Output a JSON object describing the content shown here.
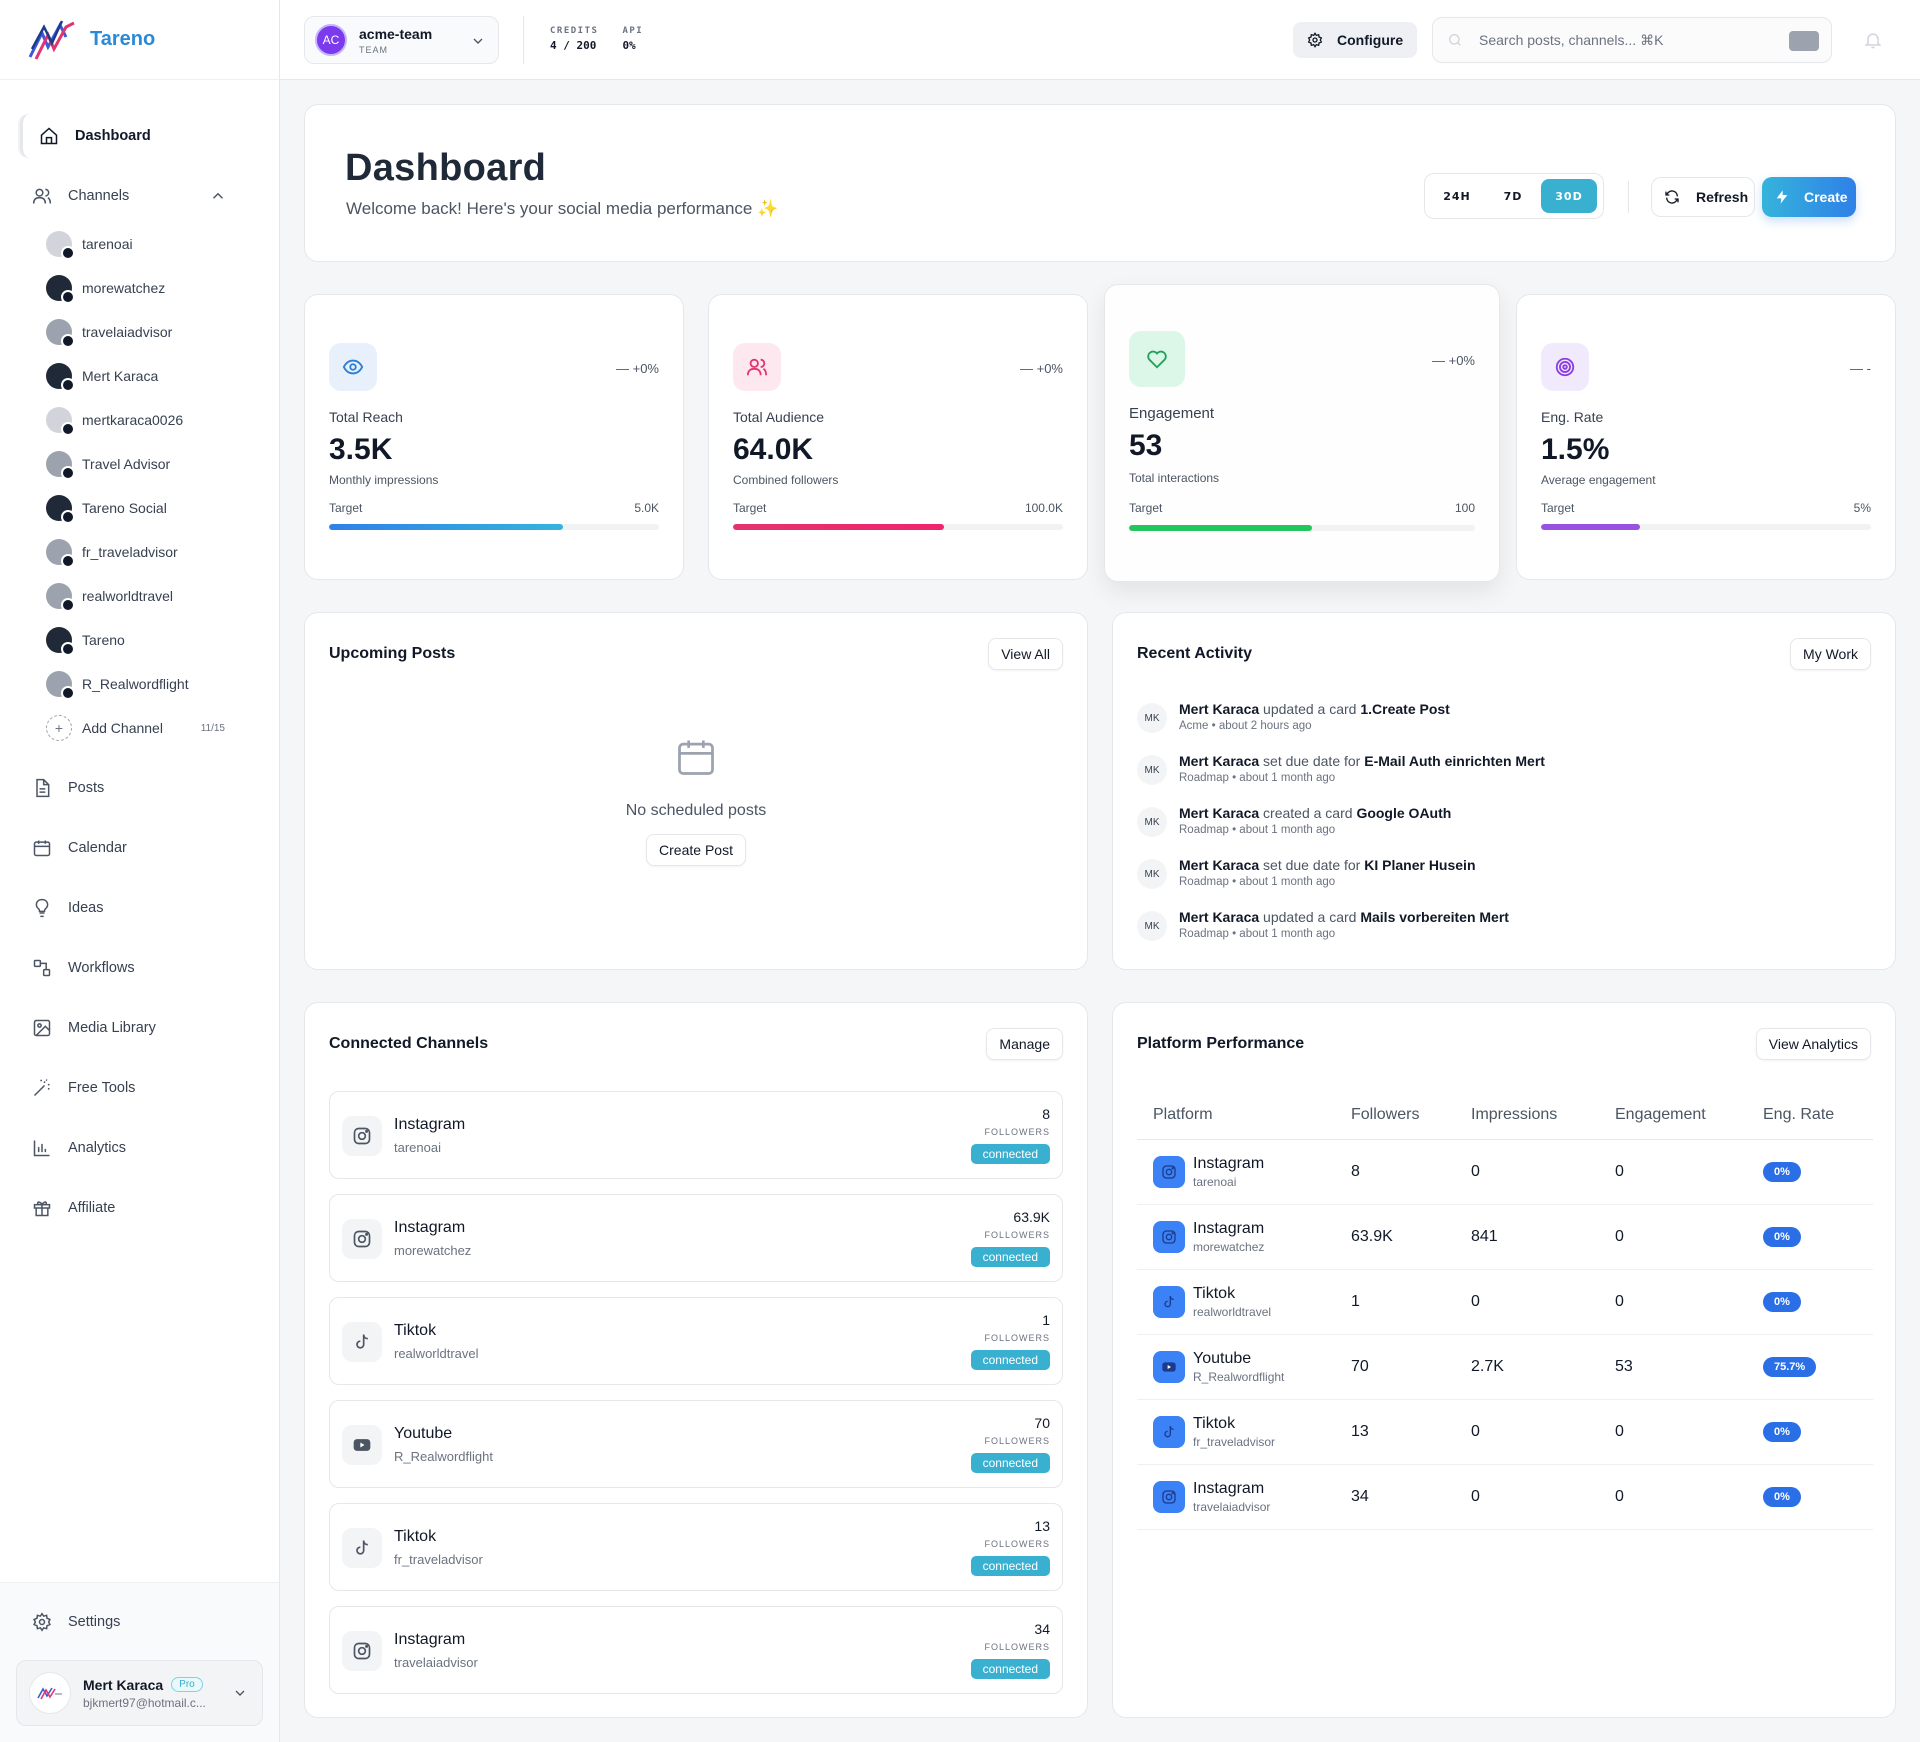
{
  "app": {
    "name": "Tareno"
  },
  "sidebar": {
    "dashboard": "Dashboard",
    "channels": "Channels",
    "channel_list": [
      {
        "name": "tarenoai",
        "avatar": "light",
        "network": "instagram"
      },
      {
        "name": "morewatchez",
        "avatar": "dark",
        "network": "instagram"
      },
      {
        "name": "travelaiadvisor",
        "avatar": "gray",
        "network": "instagram"
      },
      {
        "name": "Mert Karaca",
        "avatar": "dark",
        "network": "linkedin"
      },
      {
        "name": "mertkaraca0026",
        "avatar": "light",
        "network": "instagram"
      },
      {
        "name": "Travel Advisor",
        "avatar": "gray",
        "network": "instagram"
      },
      {
        "name": "Tareno Social",
        "avatar": "dark",
        "network": "instagram"
      },
      {
        "name": "fr_traveladvisor",
        "avatar": "gray",
        "network": "tiktok"
      },
      {
        "name": "realworldtravel",
        "avatar": "gray",
        "network": "tiktok"
      },
      {
        "name": "Tareno",
        "avatar": "dark",
        "network": "x"
      },
      {
        "name": "R_Realwordflight",
        "avatar": "gray",
        "network": "youtube"
      }
    ],
    "add_channel": "Add Channel",
    "channel_count": "11/15",
    "items": [
      "Posts",
      "Calendar",
      "Ideas",
      "Workflows",
      "Media Library",
      "Free Tools",
      "Analytics",
      "Affiliate"
    ],
    "settings": "Settings",
    "user": {
      "name": "Mert Karaca",
      "badge": "Pro",
      "email": "bjkmert97@hotmail.c..."
    }
  },
  "topbar": {
    "team_initials": "AC",
    "team_name": "acme-team",
    "team_role": "TEAM",
    "credits_label": "CREDITS",
    "credits_value": "4 / 200",
    "api_label": "API",
    "api_value": "0%",
    "configure": "Configure",
    "search_placeholder": "Search posts, channels... ⌘K"
  },
  "hero": {
    "title": "Dashboard",
    "subtitle": "Welcome back! Here's your social media performance ✨",
    "ranges": [
      "24H",
      "7D",
      "30D"
    ],
    "active_range": "30D",
    "refresh": "Refresh",
    "create": "Create"
  },
  "stats": [
    {
      "label": "Total Reach",
      "value": "3.5K",
      "sub": "Monthly impressions",
      "trend": "+0%",
      "target_label": "Target",
      "target": "5.0K",
      "progress": 0.71,
      "icon": "eye-icon",
      "icon_bg": "#e8f1fb",
      "icon_color": "#2b7fd4",
      "bar": "linear-gradient(90deg,#2f80e8,#35b4db)"
    },
    {
      "label": "Total Audience",
      "value": "64.0K",
      "sub": "Combined followers",
      "trend": "+0%",
      "target_label": "Target",
      "target": "100.0K",
      "progress": 0.64,
      "icon": "users-icon",
      "icon_bg": "#fde8ef",
      "icon_color": "#e4336f",
      "bar": "linear-gradient(90deg,#e4336f,#f0246e)"
    },
    {
      "label": "Engagement",
      "value": "53",
      "sub": "Total interactions",
      "trend": "+0%",
      "target_label": "Target",
      "target": "100",
      "progress": 0.53,
      "icon": "heart-icon",
      "icon_bg": "#dcf7e8",
      "icon_color": "#22a35a",
      "bar": "#22c55e"
    },
    {
      "label": "Eng. Rate",
      "value": "1.5%",
      "sub": "Average engagement",
      "trend": "-",
      "target_label": "Target",
      "target": "5%",
      "progress": 0.3,
      "icon": "target-icon",
      "icon_bg": "#f1eafc",
      "icon_color": "#8b3fe0",
      "bar": "#9b51e0"
    }
  ],
  "upcoming": {
    "title": "Upcoming Posts",
    "view_all": "View All",
    "empty": "No scheduled posts",
    "create_post": "Create Post"
  },
  "activity": {
    "title": "Recent Activity",
    "my_work": "My Work",
    "items": [
      {
        "initials": "MK",
        "user": "Mert Karaca",
        "action": "updated a card",
        "target": "1.Create Post",
        "board": "Acme",
        "time": "about 2 hours ago"
      },
      {
        "initials": "MK",
        "user": "Mert Karaca",
        "action": "set due date for",
        "target": "E-Mail Auth einrichten Mert",
        "board": "Roadmap",
        "time": "about 1 month ago"
      },
      {
        "initials": "MK",
        "user": "Mert Karaca",
        "action": "created a card",
        "target": "Google OAuth",
        "board": "Roadmap",
        "time": "about 1 month ago"
      },
      {
        "initials": "MK",
        "user": "Mert Karaca",
        "action": "set due date for",
        "target": "KI Planer Husein",
        "board": "Roadmap",
        "time": "about 1 month ago"
      },
      {
        "initials": "MK",
        "user": "Mert Karaca",
        "action": "updated a card",
        "target": "Mails vorbereiten Mert",
        "board": "Roadmap",
        "time": "about 1 month ago"
      }
    ]
  },
  "connected": {
    "title": "Connected Channels",
    "manage": "Manage",
    "followers_label": "FOLLOWERS",
    "channels": [
      {
        "platform": "Instagram",
        "handle": "tarenoai",
        "followers": "8",
        "status": "connected",
        "icon": "instagram-icon"
      },
      {
        "platform": "Instagram",
        "handle": "morewatchez",
        "followers": "63.9K",
        "status": "connected",
        "icon": "instagram-icon"
      },
      {
        "platform": "Tiktok",
        "handle": "realworldtravel",
        "followers": "1",
        "status": "connected",
        "icon": "tiktok-icon"
      },
      {
        "platform": "Youtube",
        "handle": "R_Realwordflight",
        "followers": "70",
        "status": "connected",
        "icon": "youtube-icon"
      },
      {
        "platform": "Tiktok",
        "handle": "fr_traveladvisor",
        "followers": "13",
        "status": "connected",
        "icon": "tiktok-icon"
      },
      {
        "platform": "Instagram",
        "handle": "travelaiadvisor",
        "followers": "34",
        "status": "connected",
        "icon": "instagram-icon"
      }
    ]
  },
  "performance": {
    "title": "Platform Performance",
    "view_analytics": "View Analytics",
    "columns": [
      "Platform",
      "Followers",
      "Impressions",
      "Engagement",
      "Eng. Rate"
    ],
    "rows": [
      {
        "platform": "Instagram",
        "handle": "tarenoai",
        "followers": "8",
        "impressions": "0",
        "engagement": "0",
        "rate": "0%",
        "icon": "instagram-icon"
      },
      {
        "platform": "Instagram",
        "handle": "morewatchez",
        "followers": "63.9K",
        "impressions": "841",
        "engagement": "0",
        "rate": "0%",
        "icon": "instagram-icon"
      },
      {
        "platform": "Tiktok",
        "handle": "realworldtravel",
        "followers": "1",
        "impressions": "0",
        "engagement": "0",
        "rate": "0%",
        "icon": "tiktok-icon"
      },
      {
        "platform": "Youtube",
        "handle": "R_Realwordflight",
        "followers": "70",
        "impressions": "2.7K",
        "engagement": "53",
        "rate": "75.7%",
        "icon": "youtube-icon"
      },
      {
        "platform": "Tiktok",
        "handle": "fr_traveladvisor",
        "followers": "13",
        "impressions": "0",
        "engagement": "0",
        "rate": "0%",
        "icon": "tiktok-icon"
      },
      {
        "platform": "Instagram",
        "handle": "travelaiadvisor",
        "followers": "34",
        "impressions": "0",
        "engagement": "0",
        "rate": "0%",
        "icon": "instagram-icon"
      }
    ]
  }
}
